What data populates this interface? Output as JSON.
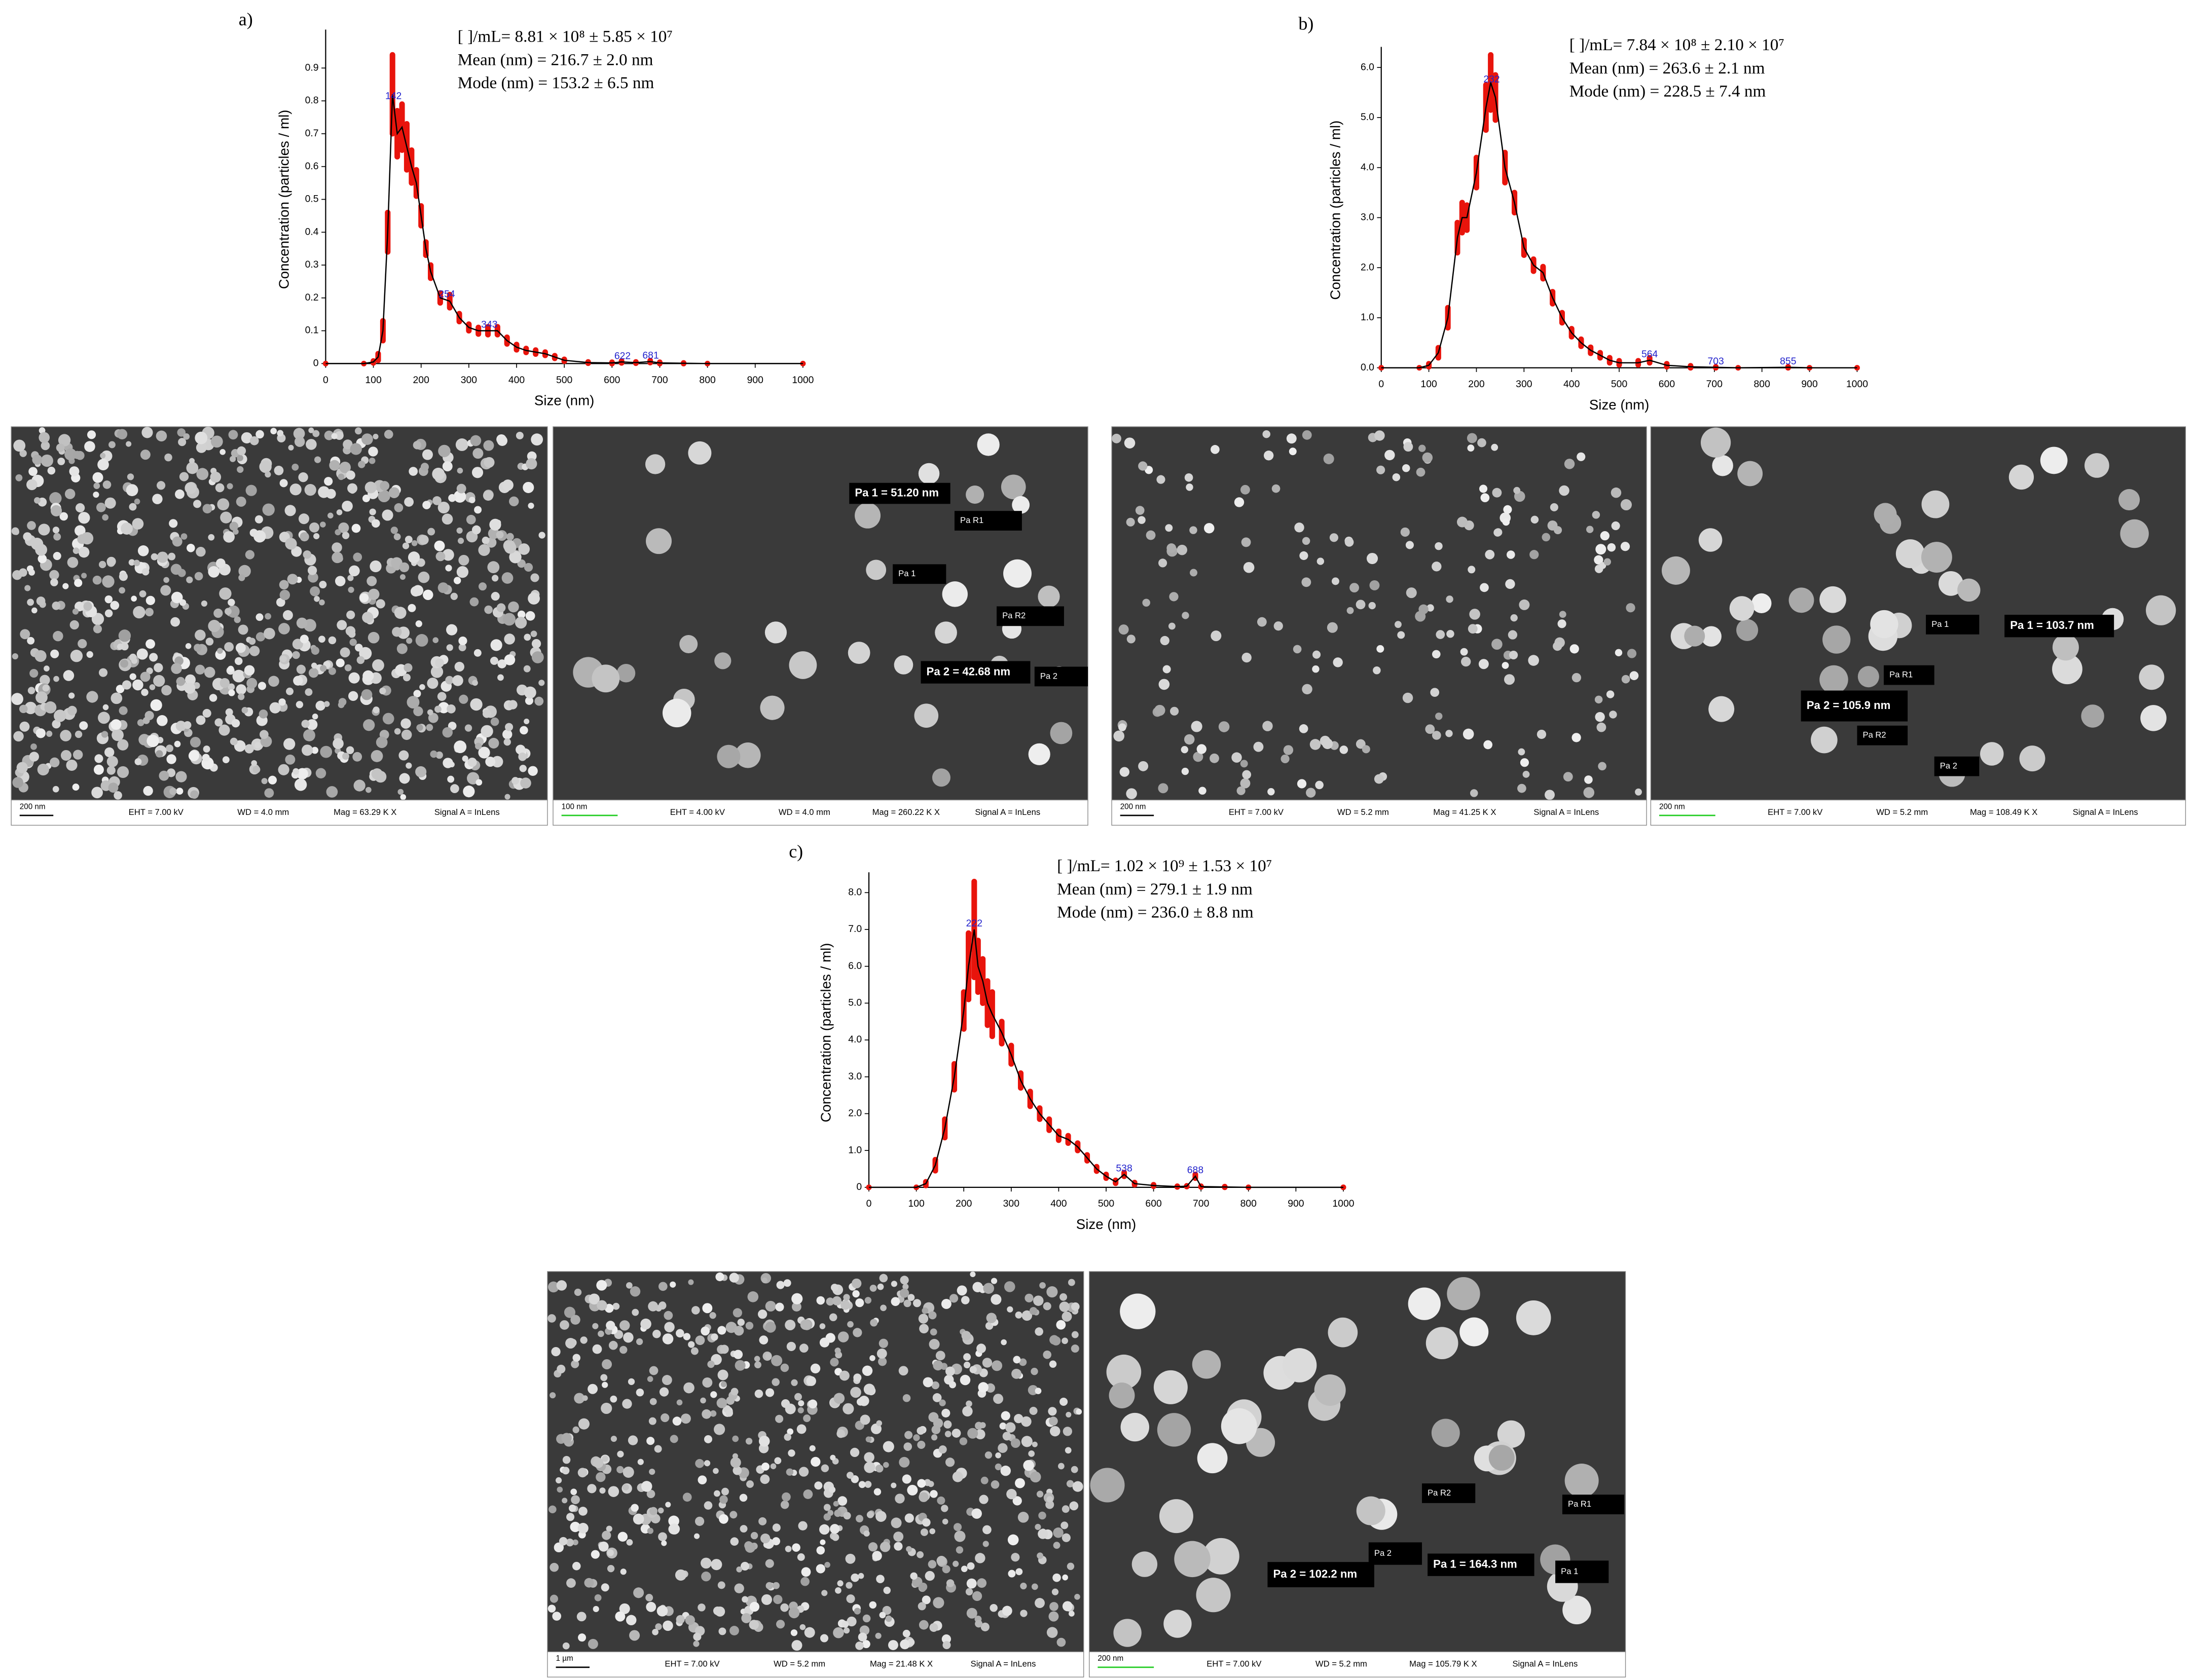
{
  "chart_data": [
    {
      "type": "line",
      "label": "a)",
      "stats": [
        "[ ]/mL= 8.81 × 10⁸ ± 5.85 × 10⁷",
        "Mean (nm) = 216.7 ±  2.0 nm",
        "Mode (nm) = 153.2 ± 6.5 nm"
      ],
      "x_label": "Size (nm)",
      "y_label": "Concentration (particles / ml)",
      "x": [
        0,
        80,
        100,
        110,
        120,
        130,
        140,
        150,
        160,
        170,
        180,
        190,
        200,
        210,
        220,
        240,
        260,
        280,
        300,
        320,
        340,
        360,
        380,
        400,
        420,
        440,
        460,
        480,
        500,
        550,
        600,
        620,
        650,
        680,
        700,
        750,
        800,
        1000
      ],
      "values": [
        0,
        0,
        0.005,
        0.02,
        0.1,
        0.4,
        0.82,
        0.7,
        0.72,
        0.66,
        0.6,
        0.55,
        0.45,
        0.35,
        0.28,
        0.2,
        0.19,
        0.14,
        0.11,
        0.1,
        0.1,
        0.1,
        0.07,
        0.05,
        0.04,
        0.035,
        0.03,
        0.02,
        0.01,
        0.003,
        0.002,
        0.005,
        0.003,
        0.006,
        0.002,
        0.001,
        0,
        0
      ],
      "errors": [
        0,
        0,
        0.003,
        0.01,
        0.03,
        0.06,
        0.12,
        0.07,
        0.07,
        0.07,
        0.05,
        0.04,
        0.03,
        0.02,
        0.02,
        0.015,
        0.02,
        0.012,
        0.01,
        0.01,
        0.012,
        0.012,
        0.01,
        0.008,
        0.006,
        0.006,
        0.005,
        0.004,
        0.003,
        0.002,
        0.002,
        0.003,
        0.002,
        0.003,
        0.002,
        0.001,
        0,
        0
      ],
      "peaks": [
        142,
        254,
        343,
        622,
        681
      ],
      "line_color": "#000000",
      "error_color": "#e8140c",
      "peak_color": "#2222cc",
      "xlim": [
        0,
        1000
      ],
      "xticks": [
        0,
        100,
        200,
        300,
        400,
        500,
        600,
        700,
        800,
        900,
        1000
      ],
      "ylim": [
        0,
        1.0
      ],
      "yticks": [
        0,
        0.1,
        0.2,
        0.3,
        0.4,
        0.5,
        0.6,
        0.7,
        0.8,
        0.9
      ]
    },
    {
      "type": "line",
      "label": "b)",
      "stats": [
        "[ ]/mL= 7.84 × 10⁸ ± 2.10 × 10⁷",
        "Mean (nm) = 263.6 ±  2.1 nm",
        "Mode (nm) = 228.5 ± 7.4 nm"
      ],
      "x_label": "Size (nm)",
      "y_label": "Concentration (particles / ml)",
      "x": [
        0,
        80,
        100,
        120,
        140,
        160,
        170,
        180,
        200,
        220,
        230,
        240,
        260,
        280,
        300,
        320,
        340,
        360,
        380,
        400,
        420,
        440,
        460,
        480,
        500,
        540,
        564,
        600,
        650,
        703,
        750,
        855,
        900,
        1000
      ],
      "values": [
        0,
        0,
        0.05,
        0.3,
        1.0,
        2.6,
        3.0,
        3.0,
        3.9,
        5.2,
        5.7,
        5.4,
        4.0,
        3.3,
        2.4,
        2.05,
        1.9,
        1.4,
        1.0,
        0.7,
        0.5,
        0.35,
        0.25,
        0.15,
        0.1,
        0.1,
        0.15,
        0.05,
        0.02,
        0.01,
        0,
        0.01,
        0,
        0
      ],
      "errors": [
        0,
        0,
        0.03,
        0.1,
        0.2,
        0.3,
        0.3,
        0.25,
        0.3,
        0.45,
        0.55,
        0.45,
        0.3,
        0.2,
        0.15,
        0.12,
        0.12,
        0.12,
        0.1,
        0.08,
        0.07,
        0.06,
        0.05,
        0.05,
        0.04,
        0.04,
        0.05,
        0.03,
        0.02,
        0.01,
        0,
        0.01,
        0,
        0
      ],
      "peaks": [
        232,
        564,
        703,
        855
      ],
      "line_color": "#000000",
      "error_color": "#e8140c",
      "peak_color": "#2222cc",
      "xlim": [
        0,
        1000
      ],
      "xticks": [
        0,
        100,
        200,
        300,
        400,
        500,
        600,
        700,
        800,
        900,
        1000
      ],
      "ylim": [
        0,
        6.3
      ],
      "yticks": [
        {
          "value": 0,
          "label": "0.0"
        },
        {
          "value": 1,
          "label": "1.0"
        },
        {
          "value": 2,
          "label": "2.0"
        },
        {
          "value": 3,
          "label": "3.0"
        },
        {
          "value": 4,
          "label": "4.0"
        },
        {
          "value": 5,
          "label": "5.0"
        },
        {
          "value": 6,
          "label": "6.0"
        }
      ]
    },
    {
      "type": "line",
      "label": "c)",
      "stats": [
        "[ ]/mL= 1.02 × 10⁹ ± 1.53 × 10⁷",
        "Mean (nm) = 279.1 ±  1.9 nm",
        "Mode (nm) = 236.0 ± 8.8 nm"
      ],
      "x_label": "Size (nm)",
      "y_label": "Concentration (particles / ml)",
      "x": [
        0,
        100,
        120,
        140,
        160,
        180,
        200,
        210,
        222,
        230,
        240,
        250,
        260,
        280,
        300,
        320,
        340,
        360,
        380,
        400,
        420,
        440,
        460,
        480,
        500,
        520,
        538,
        560,
        600,
        650,
        670,
        688,
        700,
        750,
        800,
        1000
      ],
      "values": [
        0,
        0,
        0.1,
        0.6,
        1.6,
        3.0,
        4.8,
        6.0,
        7.0,
        6.0,
        5.6,
        5.0,
        4.7,
        4.2,
        3.6,
        2.9,
        2.4,
        2.0,
        1.7,
        1.4,
        1.3,
        1.1,
        0.8,
        0.5,
        0.3,
        0.15,
        0.35,
        0.1,
        0.05,
        0.02,
        0.03,
        0.3,
        0.02,
        0.01,
        0,
        0
      ],
      "errors": [
        0,
        0,
        0.05,
        0.15,
        0.25,
        0.35,
        0.5,
        0.9,
        1.3,
        0.7,
        0.6,
        0.6,
        0.6,
        0.3,
        0.25,
        0.2,
        0.2,
        0.15,
        0.15,
        0.12,
        0.1,
        0.1,
        0.08,
        0.06,
        0.05,
        0.04,
        0.05,
        0.03,
        0.02,
        0.01,
        0.01,
        0.05,
        0.01,
        0.01,
        0,
        0
      ],
      "peaks": [
        222,
        538,
        688
      ],
      "line_color": "#000000",
      "error_color": "#e8140c",
      "peak_color": "#2222cc",
      "xlim": [
        0,
        1000
      ],
      "xticks": [
        0,
        100,
        200,
        300,
        400,
        500,
        600,
        700,
        800,
        900,
        1000
      ],
      "ylim": [
        0,
        8.4
      ],
      "yticks": [
        0,
        {
          "value": 1,
          "label": "1.0"
        },
        {
          "value": 2,
          "label": "2.0"
        },
        {
          "value": 3,
          "label": "3.0"
        },
        {
          "value": 4,
          "label": "4.0"
        },
        {
          "value": 5,
          "label": "5.0"
        },
        {
          "value": 6,
          "label": "6.0"
        },
        {
          "value": 7,
          "label": "7.0"
        },
        {
          "value": 8,
          "label": "8.0"
        }
      ]
    }
  ],
  "sem_images": [
    {
      "scale_bar": "200 nm",
      "eht": "EHT = 7.00 kV",
      "wd": "WD = 4.0 mm",
      "mag": "Mag = 63.29 K X",
      "signal": "Signal A = InLens",
      "annotations": []
    },
    {
      "scale_bar": "100 nm",
      "eht": "EHT = 4.00 kV",
      "wd": "WD = 4.0 mm",
      "mag": "Mag = 260.22 K X",
      "signal": "Signal A = InLens",
      "annotations": [
        "Pa 1 = 51.20 nm",
        "Pa R1",
        "Pa 1",
        "Pa R2",
        "Pa 2 = 42.68 nm",
        "Pa 2"
      ]
    },
    {
      "scale_bar": "200 nm",
      "eht": "EHT = 7.00 kV",
      "wd": "WD = 5.2 mm",
      "mag": "Mag = 41.25 K X",
      "signal": "Signal A = InLens",
      "annotations": []
    },
    {
      "scale_bar": "200 nm",
      "eht": "EHT = 7.00 kV",
      "wd": "WD = 5.2 mm",
      "mag": "Mag = 108.49 K X",
      "signal": "Signal A = InLens",
      "annotations": [
        "Pa 1",
        "Pa 1 = 103.7 nm",
        "Pa R1",
        "Pa 2 = 105.9 nm",
        "Pa R2",
        "Pa 2"
      ]
    },
    {
      "scale_bar": "1 µm",
      "eht": "EHT = 7.00 kV",
      "wd": "WD = 5.2 mm",
      "mag": "Mag = 21.48 K X",
      "signal": "Signal A = InLens",
      "annotations": []
    },
    {
      "scale_bar": "200 nm",
      "eht": "EHT = 7.00 kV",
      "wd": "WD = 5.2 mm",
      "mag": "Mag = 105.79 K X",
      "signal": "Signal A = InLens",
      "annotations": [
        "Pa R2",
        "Pa R1",
        "Pa 2",
        "Pa 2 = 102.2 nm",
        "Pa 1 = 164.3 nm",
        "Pa 1"
      ]
    }
  ]
}
